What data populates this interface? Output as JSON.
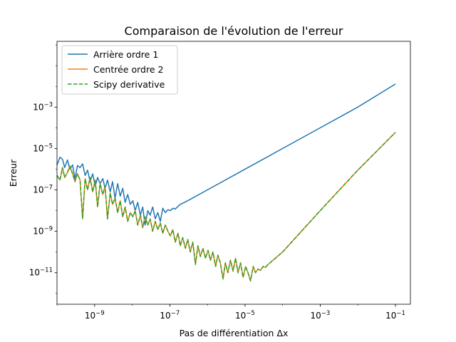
{
  "chart_data": {
    "type": "line",
    "title": "Comparaison de l'évolution de l'erreur",
    "xlabel": "Pas de différentiation Δx",
    "ylabel": "Erreur",
    "xscale": "log",
    "yscale": "log",
    "xlim": [
      1e-10,
      0.25
    ],
    "ylim": [
      3e-13,
      1.5
    ],
    "grid": false,
    "legend_position": "top-left",
    "x_ticks": [
      {
        "value": 1e-09,
        "base": "10",
        "exp": "−9"
      },
      {
        "value": 1e-07,
        "base": "10",
        "exp": "−7"
      },
      {
        "value": 1e-05,
        "base": "10",
        "exp": "−5"
      },
      {
        "value": 0.001,
        "base": "10",
        "exp": "−3"
      },
      {
        "value": 0.1,
        "base": "10",
        "exp": "−1"
      }
    ],
    "y_ticks": [
      {
        "value": 1e-11,
        "base": "10",
        "exp": "−11"
      },
      {
        "value": 1e-09,
        "base": "10",
        "exp": "−9"
      },
      {
        "value": 1e-07,
        "base": "10",
        "exp": "−7"
      },
      {
        "value": 1e-05,
        "base": "10",
        "exp": "−5"
      },
      {
        "value": 0.001,
        "base": "10",
        "exp": "−3"
      }
    ],
    "series": [
      {
        "name": "Arrière ordre 1",
        "color": "#1f77b4",
        "style": "solid",
        "points": [
          [
            1e-10,
            1.6e-06
          ],
          [
            1.2e-10,
            3.8e-06
          ],
          [
            1.4e-10,
            3e-06
          ],
          [
            1.6e-10,
            1.2e-06
          ],
          [
            1.9e-10,
            2.8e-06
          ],
          [
            2.2e-10,
            1e-06
          ],
          [
            2.6e-10,
            1.6e-06
          ],
          [
            3e-10,
            3.5e-07
          ],
          [
            3.5e-10,
            1.5e-06
          ],
          [
            4.1e-10,
            1.2e-06
          ],
          [
            4.8e-10,
            1.8e-06
          ],
          [
            5.6e-10,
            5e-07
          ],
          [
            6.5e-10,
            9e-07
          ],
          [
            7.6e-10,
            2.5e-07
          ],
          [
            8.9e-10,
            6e-07
          ],
          [
            1.04e-09,
            1.5e-07
          ],
          [
            1.2e-09,
            4e-07
          ],
          [
            1.4e-09,
            2e-07
          ],
          [
            1.65e-09,
            3.5e-07
          ],
          [
            1.9e-09,
            1.2e-07
          ],
          [
            2.2e-09,
            3e-07
          ],
          [
            2.6e-09,
            8e-08
          ],
          [
            3e-09,
            2.5e-07
          ],
          [
            3.5e-09,
            4e-08
          ],
          [
            4.1e-09,
            2e-07
          ],
          [
            4.8e-09,
            5e-08
          ],
          [
            5.6e-09,
            1.2e-07
          ],
          [
            6.5e-09,
            2.5e-08
          ],
          [
            7.6e-09,
            6e-08
          ],
          [
            8.9e-09,
            2e-08
          ],
          [
            1.04e-08,
            3e-08
          ],
          [
            1.2e-08,
            1e-08
          ],
          [
            1.4e-08,
            2.5e-08
          ],
          [
            1.65e-08,
            6e-09
          ],
          [
            1.9e-08,
            1.5e-08
          ],
          [
            2.2e-08,
            2e-09
          ],
          [
            2.6e-08,
            1e-08
          ],
          [
            3e-08,
            6e-09
          ],
          [
            3.5e-08,
            1.5e-08
          ],
          [
            4.1e-08,
            4e-09
          ],
          [
            4.8e-08,
            8e-09
          ],
          [
            5.6e-08,
            3e-09
          ],
          [
            6.5e-08,
            1.3e-08
          ],
          [
            7.6e-08,
            8e-09
          ],
          [
            8.9e-08,
            1.1e-08
          ],
          [
            1.04e-07,
            1e-08
          ],
          [
            1.2e-07,
            1.3e-08
          ],
          [
            1.4e-07,
            1.2e-08
          ],
          [
            1.65e-07,
            1.6e-08
          ],
          [
            1.9e-07,
            2e-08
          ],
          [
            3e-07,
            3e-08
          ],
          [
            1e-06,
            1e-07
          ],
          [
            1e-05,
            1e-06
          ],
          [
            0.0001,
            1e-05
          ],
          [
            0.001,
            0.0001
          ],
          [
            0.01,
            0.001
          ],
          [
            0.1,
            0.013
          ]
        ]
      },
      {
        "name": "Centrée ordre 2",
        "color": "#ff7f0e",
        "style": "solid",
        "points": [
          [
            1e-10,
            5e-07
          ],
          [
            1.2e-10,
            3e-07
          ],
          [
            1.4e-10,
            1.2e-06
          ],
          [
            1.6e-10,
            4e-07
          ],
          [
            1.9e-10,
            7e-07
          ],
          [
            2.2e-10,
            1.4e-06
          ],
          [
            2.6e-10,
            6e-07
          ],
          [
            3e-10,
            2.5e-07
          ],
          [
            3.5e-10,
            6e-07
          ],
          [
            4.1e-10,
            3e-07
          ],
          [
            4.8e-10,
            4e-09
          ],
          [
            5.6e-10,
            3.5e-07
          ],
          [
            6.5e-10,
            1e-07
          ],
          [
            7.6e-10,
            4e-07
          ],
          [
            8.9e-10,
            8e-08
          ],
          [
            1.04e-09,
            3e-07
          ],
          [
            1.2e-09,
            1.5e-08
          ],
          [
            1.4e-09,
            2e-07
          ],
          [
            1.65e-09,
            6e-08
          ],
          [
            1.9e-09,
            1.5e-07
          ],
          [
            2.2e-09,
            4e-09
          ],
          [
            2.6e-09,
            7e-08
          ],
          [
            3e-09,
            2e-08
          ],
          [
            3.5e-09,
            4e-08
          ],
          [
            4.1e-09,
            8e-09
          ],
          [
            4.8e-09,
            3e-08
          ],
          [
            5.6e-09,
            5e-09
          ],
          [
            6.5e-09,
            1.5e-08
          ],
          [
            7.6e-09,
            3e-09
          ],
          [
            8.9e-09,
            8e-09
          ],
          [
            1.04e-08,
            5e-09
          ],
          [
            1.2e-08,
            1e-08
          ],
          [
            1.4e-08,
            2e-09
          ],
          [
            1.65e-08,
            6e-09
          ],
          [
            1.9e-08,
            1.5e-09
          ],
          [
            2.2e-08,
            5e-09
          ],
          [
            2.6e-08,
            2e-09
          ],
          [
            3e-08,
            4e-09
          ],
          [
            3.5e-08,
            1e-09
          ],
          [
            4.1e-08,
            3e-09
          ],
          [
            4.8e-08,
            1.2e-09
          ],
          [
            5.6e-08,
            2.5e-09
          ],
          [
            6.5e-08,
            8e-10
          ],
          [
            7.6e-08,
            2e-09
          ],
          [
            8.9e-08,
            1e-09
          ],
          [
            1.04e-07,
            6e-10
          ],
          [
            1.2e-07,
            1.2e-09
          ],
          [
            1.4e-07,
            3e-10
          ],
          [
            1.65e-07,
            8e-10
          ],
          [
            1.9e-07,
            2e-10
          ],
          [
            2.2e-07,
            5e-10
          ],
          [
            2.6e-07,
            1.5e-10
          ],
          [
            3e-07,
            4e-10
          ],
          [
            3.5e-07,
            1e-10
          ],
          [
            4.1e-07,
            3e-10
          ],
          [
            4.8e-07,
            2.5e-11
          ],
          [
            5.6e-07,
            2e-10
          ],
          [
            6.5e-07,
            6e-11
          ],
          [
            7.6e-07,
            1.5e-10
          ],
          [
            8.9e-07,
            5e-11
          ],
          [
            1.04e-06,
            1.2e-10
          ],
          [
            1.2e-06,
            4e-11
          ],
          [
            1.4e-06,
            1e-10
          ],
          [
            1.65e-06,
            2e-11
          ],
          [
            1.9e-06,
            7e-11
          ],
          [
            2.2e-06,
            3e-11
          ],
          [
            2.6e-06,
            5e-12
          ],
          [
            3e-06,
            3e-11
          ],
          [
            3.5e-06,
            1e-11
          ],
          [
            4.1e-06,
            4e-11
          ],
          [
            4.8e-06,
            1.2e-11
          ],
          [
            5.6e-06,
            5e-11
          ],
          [
            6.5e-06,
            1e-11
          ],
          [
            7.6e-06,
            3e-11
          ],
          [
            8.9e-06,
            6e-12
          ],
          [
            1.04e-05,
            2e-11
          ],
          [
            1.2e-05,
            1e-11
          ],
          [
            1.4e-05,
            4e-12
          ],
          [
            1.65e-05,
            2e-11
          ],
          [
            1.9e-05,
            1e-11
          ],
          [
            2.2e-05,
            1.5e-11
          ],
          [
            2.6e-05,
            1.3e-11
          ],
          [
            3e-05,
            2e-11
          ],
          [
            3.5e-05,
            1.8e-11
          ],
          [
            4.1e-05,
            2.5e-11
          ],
          [
            0.0001,
            1e-10
          ],
          [
            0.001,
            1e-08
          ],
          [
            0.01,
            9e-07
          ],
          [
            0.1,
            6e-05
          ]
        ]
      },
      {
        "name": "Scipy derivative",
        "color": "#2ca02c",
        "style": "dashed",
        "points": [
          [
            1e-10,
            5e-07
          ],
          [
            1.2e-10,
            3e-07
          ],
          [
            1.4e-10,
            1.2e-06
          ],
          [
            1.6e-10,
            4e-07
          ],
          [
            1.9e-10,
            7e-07
          ],
          [
            2.2e-10,
            1.4e-06
          ],
          [
            2.6e-10,
            6e-07
          ],
          [
            3e-10,
            2.5e-07
          ],
          [
            3.5e-10,
            6e-07
          ],
          [
            4.1e-10,
            3e-07
          ],
          [
            4.8e-10,
            4e-09
          ],
          [
            5.6e-10,
            3.5e-07
          ],
          [
            6.5e-10,
            1e-07
          ],
          [
            7.6e-10,
            4e-07
          ],
          [
            8.9e-10,
            8e-08
          ],
          [
            1.04e-09,
            3e-07
          ],
          [
            1.2e-09,
            1.5e-08
          ],
          [
            1.4e-09,
            2e-07
          ],
          [
            1.65e-09,
            6e-08
          ],
          [
            1.9e-09,
            1.5e-07
          ],
          [
            2.2e-09,
            4e-09
          ],
          [
            2.6e-09,
            7e-08
          ],
          [
            3e-09,
            2e-08
          ],
          [
            3.5e-09,
            4e-08
          ],
          [
            4.1e-09,
            8e-09
          ],
          [
            4.8e-09,
            3e-08
          ],
          [
            5.6e-09,
            5e-09
          ],
          [
            6.5e-09,
            1.5e-08
          ],
          [
            7.6e-09,
            3e-09
          ],
          [
            8.9e-09,
            8e-09
          ],
          [
            1.04e-08,
            5e-09
          ],
          [
            1.2e-08,
            1e-08
          ],
          [
            1.4e-08,
            2e-09
          ],
          [
            1.65e-08,
            6e-09
          ],
          [
            1.9e-08,
            1.5e-09
          ],
          [
            2.2e-08,
            5e-09
          ],
          [
            2.6e-08,
            2e-09
          ],
          [
            3e-08,
            4e-09
          ],
          [
            3.5e-08,
            1e-09
          ],
          [
            4.1e-08,
            3e-09
          ],
          [
            4.8e-08,
            1.2e-09
          ],
          [
            5.6e-08,
            2.5e-09
          ],
          [
            6.5e-08,
            8e-10
          ],
          [
            7.6e-08,
            2e-09
          ],
          [
            8.9e-08,
            1e-09
          ],
          [
            1.04e-07,
            6e-10
          ],
          [
            1.2e-07,
            1.2e-09
          ],
          [
            1.4e-07,
            3e-10
          ],
          [
            1.65e-07,
            8e-10
          ],
          [
            1.9e-07,
            2e-10
          ],
          [
            2.2e-07,
            5e-10
          ],
          [
            2.6e-07,
            1.5e-10
          ],
          [
            3e-07,
            4e-10
          ],
          [
            3.5e-07,
            1e-10
          ],
          [
            4.1e-07,
            3e-10
          ],
          [
            4.8e-07,
            2.5e-11
          ],
          [
            5.6e-07,
            2e-10
          ],
          [
            6.5e-07,
            6e-11
          ],
          [
            7.6e-07,
            1.5e-10
          ],
          [
            8.9e-07,
            5e-11
          ],
          [
            1.04e-06,
            1.2e-10
          ],
          [
            1.2e-06,
            4e-11
          ],
          [
            1.4e-06,
            1e-10
          ],
          [
            1.65e-06,
            2e-11
          ],
          [
            1.9e-06,
            7e-11
          ],
          [
            2.2e-06,
            3e-11
          ],
          [
            2.6e-06,
            5e-12
          ],
          [
            3e-06,
            3e-11
          ],
          [
            3.5e-06,
            1e-11
          ],
          [
            4.1e-06,
            4e-11
          ],
          [
            4.8e-06,
            1.2e-11
          ],
          [
            5.6e-06,
            5e-11
          ],
          [
            6.5e-06,
            1e-11
          ],
          [
            7.6e-06,
            3e-11
          ],
          [
            8.9e-06,
            6e-12
          ],
          [
            1.04e-05,
            2e-11
          ],
          [
            1.2e-05,
            1e-11
          ],
          [
            1.4e-05,
            4e-12
          ],
          [
            1.65e-05,
            2e-11
          ],
          [
            1.9e-05,
            1e-11
          ],
          [
            2.2e-05,
            1.5e-11
          ],
          [
            2.6e-05,
            1.3e-11
          ],
          [
            3e-05,
            2e-11
          ],
          [
            3.5e-05,
            1.8e-11
          ],
          [
            4.1e-05,
            2.5e-11
          ],
          [
            0.0001,
            1e-10
          ],
          [
            0.001,
            1e-08
          ],
          [
            0.01,
            9e-07
          ],
          [
            0.1,
            6e-05
          ]
        ]
      }
    ]
  }
}
